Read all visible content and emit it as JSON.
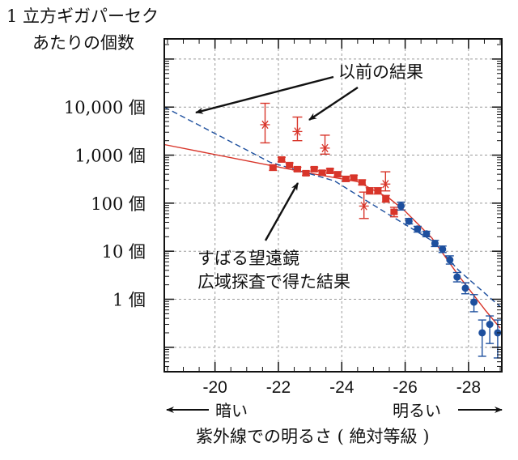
{
  "chart_data": {
    "type": "scatter",
    "ylabel_lines": [
      "1 立方ギガパーセク",
      "あたりの個数"
    ],
    "xlabel": "紫外線での明るさ ( 絶対等級 )",
    "x_direction_labels": {
      "left": "暗い",
      "right": "明るい"
    },
    "xlim": [
      -18.4,
      -29.05
    ],
    "ylim": [
      0.031,
      263000
    ],
    "y_scale": "log",
    "grid": true,
    "x_ticks": [
      -20,
      -22,
      -24,
      -26,
      -28
    ],
    "x_tick_labels": [
      "-20",
      "-22",
      "-24",
      "-26",
      "-28"
    ],
    "y_ticks": [
      10000,
      1000,
      100,
      10,
      1
    ],
    "y_tick_labels": [
      "10,000 個",
      "1,000 個",
      "100 個",
      "10 個",
      "1 個"
    ],
    "colors": {
      "red": "#d8352a",
      "blue": "#1d4f9e",
      "arrow": "#111111",
      "grid": "#9a9a9a"
    },
    "series": [
      {
        "marker": "square",
        "color": "#d8352a",
        "points": [
          {
            "x": -21.83,
            "y": 550,
            "lo": 480,
            "hi": 630
          },
          {
            "x": -22.1,
            "y": 810,
            "lo": 730,
            "hi": 900
          },
          {
            "x": -22.35,
            "y": 620,
            "lo": 560,
            "hi": 690
          },
          {
            "x": -22.6,
            "y": 510,
            "lo": 460,
            "hi": 560
          },
          {
            "x": -22.87,
            "y": 420,
            "lo": 380,
            "hi": 465
          },
          {
            "x": -23.13,
            "y": 510,
            "lo": 465,
            "hi": 560
          },
          {
            "x": -23.38,
            "y": 430,
            "lo": 390,
            "hi": 475
          },
          {
            "x": -23.63,
            "y": 470,
            "lo": 425,
            "hi": 520
          },
          {
            "x": -23.87,
            "y": 400,
            "lo": 360,
            "hi": 445
          },
          {
            "x": -24.13,
            "y": 320,
            "lo": 285,
            "hi": 360
          },
          {
            "x": -24.38,
            "y": 340,
            "lo": 305,
            "hi": 380
          },
          {
            "x": -24.64,
            "y": 270,
            "lo": 240,
            "hi": 305
          },
          {
            "x": -24.88,
            "y": 180,
            "lo": 155,
            "hi": 210
          },
          {
            "x": -25.14,
            "y": 180,
            "lo": 155,
            "hi": 210
          },
          {
            "x": -25.39,
            "y": 123,
            "lo": 105,
            "hi": 145
          },
          {
            "x": -25.65,
            "y": 66,
            "lo": 52,
            "hi": 82
          }
        ]
      },
      {
        "marker": "circle",
        "color": "#1d4f9e",
        "points": [
          {
            "x": -25.87,
            "y": 87,
            "lo": 72,
            "hi": 105
          },
          {
            "x": -26.12,
            "y": 42,
            "lo": 37,
            "hi": 48
          },
          {
            "x": -26.39,
            "y": 29,
            "lo": 25,
            "hi": 33
          },
          {
            "x": -26.67,
            "y": 23,
            "lo": 20,
            "hi": 26
          },
          {
            "x": -26.94,
            "y": 14.5,
            "lo": 12.5,
            "hi": 16.8
          },
          {
            "x": -27.18,
            "y": 11,
            "lo": 9.4,
            "hi": 12.8
          },
          {
            "x": -27.41,
            "y": 6.6,
            "lo": 5.4,
            "hi": 8.0
          },
          {
            "x": -27.64,
            "y": 2.9,
            "lo": 2.3,
            "hi": 3.6
          },
          {
            "x": -27.9,
            "y": 1.7,
            "lo": 1.3,
            "hi": 2.2
          },
          {
            "x": -28.17,
            "y": 0.87,
            "lo": 0.55,
            "hi": 1.25
          },
          {
            "x": -28.43,
            "y": 0.2,
            "lo": 0.065,
            "hi": 0.37
          },
          {
            "x": -28.67,
            "y": 0.3,
            "lo": 0.12,
            "hi": 0.45
          },
          {
            "x": -28.92,
            "y": 0.2,
            "lo": 0.06,
            "hi": 0.37
          }
        ]
      },
      {
        "marker": "asterisk",
        "color": "#d8352a",
        "points": [
          {
            "x": -21.58,
            "y": 4300,
            "lo": 1800,
            "hi": 12000
          },
          {
            "x": -22.6,
            "y": 3100,
            "lo": 2000,
            "hi": 6200
          },
          {
            "x": -23.47,
            "y": 1400,
            "lo": 1050,
            "hi": 2600
          },
          {
            "x": -24.7,
            "y": 87,
            "lo": 48,
            "hi": 170
          },
          {
            "x": -25.38,
            "y": 250,
            "lo": 180,
            "hi": 450
          }
        ]
      }
    ],
    "curves": [
      {
        "style": "solid",
        "color": "#d8352a",
        "points": [
          [
            -18.4,
            1660
          ],
          [
            -21.8,
            600
          ],
          [
            -23.0,
            420
          ],
          [
            -24.5,
            280
          ],
          [
            -25.5,
            126
          ],
          [
            -25.99,
            69
          ],
          [
            -26.84,
            19
          ],
          [
            -27.69,
            3.1
          ],
          [
            -28.54,
            0.58
          ],
          [
            -29.0,
            0.25
          ]
        ]
      },
      {
        "style": "dashed",
        "color": "#1d4f9e",
        "points": [
          [
            -18.4,
            10000
          ],
          [
            -21.74,
            710
          ],
          [
            -23.77,
            290
          ],
          [
            -25.56,
            54
          ],
          [
            -26.84,
            16.6
          ],
          [
            -27.69,
            4.0
          ],
          [
            -29.0,
            0.7
          ]
        ]
      }
    ],
    "annotations": {
      "previous": "以前の結果",
      "subaru_line1": "すばる望遠鏡",
      "subaru_line2": "広域探査で得た結果"
    }
  }
}
